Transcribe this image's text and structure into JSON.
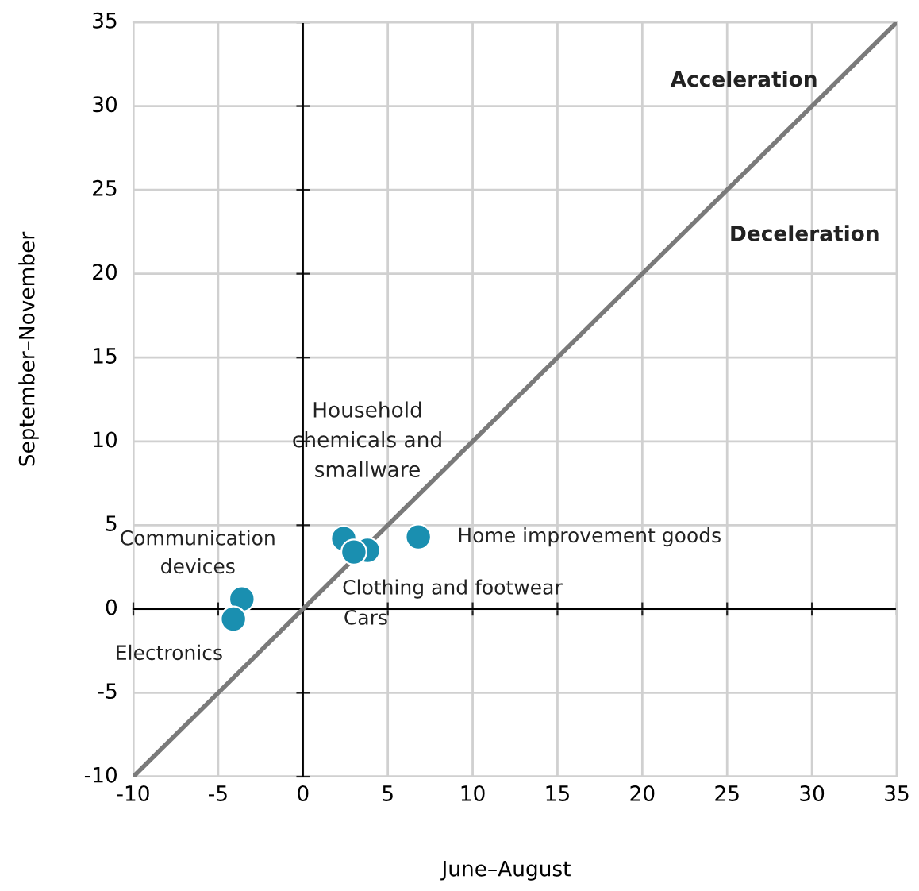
{
  "chart_data": {
    "type": "scatter",
    "xlabel": "June–August",
    "ylabel": "September–November",
    "xlim": [
      -10,
      35
    ],
    "ylim": [
      -10,
      35
    ],
    "xticks": [
      -10,
      -5,
      0,
      5,
      10,
      15,
      20,
      25,
      30,
      35
    ],
    "yticks": [
      -10,
      -5,
      0,
      5,
      10,
      15,
      20,
      25,
      30,
      35
    ],
    "grid": true,
    "legend": false,
    "series": [
      {
        "marker": "circle",
        "color": "#1a8fb0",
        "x": [
          2.4,
          3.8,
          3.0,
          6.8,
          -3.6,
          -4.1
        ],
        "values": [
          4.2,
          3.5,
          3.4,
          4.3,
          0.6,
          -0.6
        ]
      },
      {
        "type": "line",
        "color": "#7a7a7a",
        "x": [
          -10,
          35
        ],
        "values": [
          -10,
          35
        ]
      }
    ],
    "annotations": [
      "Household\nchemicals and\nsmallware",
      {
        "text": "Clothing and footwear",
        "x": 3.8,
        "y": 3.5
      },
      {
        "text": "Cars",
        "x": 3.0,
        "y": 3.4
      },
      {
        "text": "Home improvement goods",
        "x": 6.8,
        "y": 4.3
      },
      {
        "text": "Communication\ndevices",
        "x": -3.6,
        "y": 0.6
      },
      {
        "text": "Electronics",
        "x": -4.1,
        "y": -0.6
      },
      "Acceleration",
      "Deceleration"
    ]
  }
}
